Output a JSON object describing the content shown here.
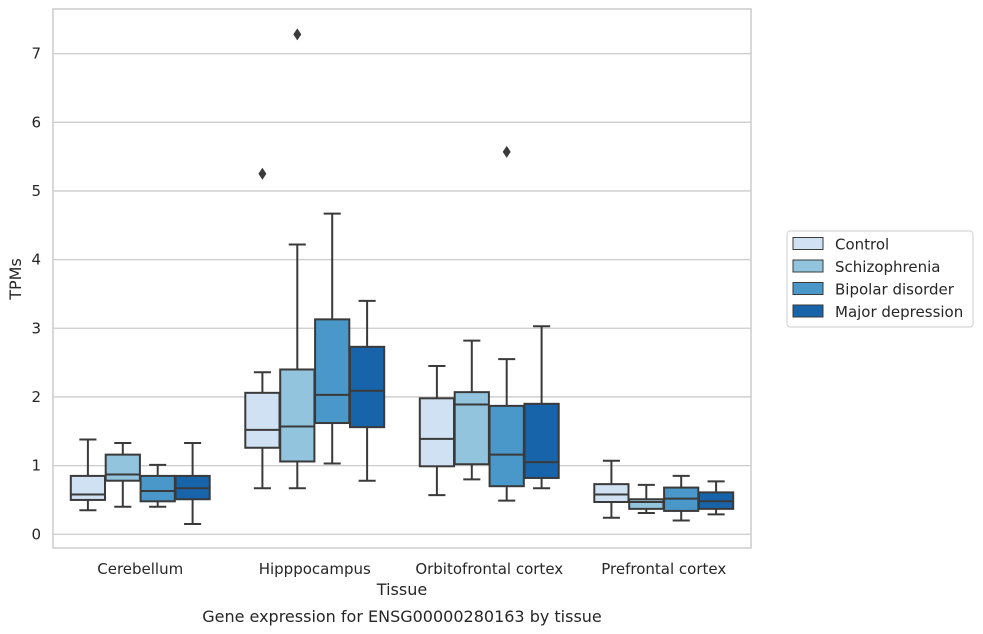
{
  "chart_data": {
    "type": "boxplot",
    "xlabel": "Tissue",
    "ylabel": "TPMs",
    "caption": "Gene expression for ENSG00000280163 by tissue",
    "ylim": [
      -0.2,
      7.65
    ],
    "yticks": [
      0,
      1,
      2,
      3,
      4,
      5,
      6,
      7
    ],
    "grid": true,
    "legend_position": "right",
    "categories": [
      "Cerebellum",
      "Hipppocampus",
      "Orbitofrontal cortex",
      "Prefrontal cortex"
    ],
    "series": [
      {
        "name": "Control",
        "color": "#cfe1f2",
        "boxes": [
          {
            "whisker_low": 0.35,
            "q1": 0.5,
            "median": 0.58,
            "q3": 0.85,
            "whisker_high": 1.38,
            "outliers": []
          },
          {
            "whisker_low": 0.67,
            "q1": 1.26,
            "median": 1.52,
            "q3": 2.06,
            "whisker_high": 2.36,
            "outliers": [
              5.25
            ]
          },
          {
            "whisker_low": 0.57,
            "q1": 0.99,
            "median": 1.39,
            "q3": 1.98,
            "whisker_high": 2.45,
            "outliers": []
          },
          {
            "whisker_low": 0.24,
            "q1": 0.47,
            "median": 0.58,
            "q3": 0.73,
            "whisker_high": 1.07,
            "outliers": []
          }
        ]
      },
      {
        "name": "Schizophrenia",
        "color": "#93c4de",
        "boxes": [
          {
            "whisker_low": 0.4,
            "q1": 0.78,
            "median": 0.87,
            "q3": 1.16,
            "whisker_high": 1.33,
            "outliers": []
          },
          {
            "whisker_low": 0.67,
            "q1": 1.06,
            "median": 1.57,
            "q3": 2.4,
            "whisker_high": 4.22,
            "outliers": [
              7.28
            ]
          },
          {
            "whisker_low": 0.8,
            "q1": 1.02,
            "median": 1.89,
            "q3": 2.07,
            "whisker_high": 2.82,
            "outliers": []
          },
          {
            "whisker_low": 0.31,
            "q1": 0.37,
            "median": 0.47,
            "q3": 0.51,
            "whisker_high": 0.72,
            "outliers": []
          }
        ]
      },
      {
        "name": "Bipolar disorder",
        "color": "#4a98c9",
        "boxes": [
          {
            "whisker_low": 0.4,
            "q1": 0.48,
            "median": 0.63,
            "q3": 0.85,
            "whisker_high": 1.01,
            "outliers": []
          },
          {
            "whisker_low": 1.03,
            "q1": 1.62,
            "median": 2.03,
            "q3": 3.13,
            "whisker_high": 4.67,
            "outliers": []
          },
          {
            "whisker_low": 0.49,
            "q1": 0.7,
            "median": 1.16,
            "q3": 1.87,
            "whisker_high": 2.55,
            "outliers": [
              5.57
            ]
          },
          {
            "whisker_low": 0.2,
            "q1": 0.34,
            "median": 0.52,
            "q3": 0.68,
            "whisker_high": 0.85,
            "outliers": []
          }
        ]
      },
      {
        "name": "Major depression",
        "color": "#1764ab",
        "boxes": [
          {
            "whisker_low": 0.15,
            "q1": 0.51,
            "median": 0.67,
            "q3": 0.85,
            "whisker_high": 1.33,
            "outliers": []
          },
          {
            "whisker_low": 0.78,
            "q1": 1.56,
            "median": 2.09,
            "q3": 2.73,
            "whisker_high": 3.4,
            "outliers": []
          },
          {
            "whisker_low": 0.67,
            "q1": 0.82,
            "median": 1.05,
            "q3": 1.9,
            "whisker_high": 3.03,
            "outliers": []
          },
          {
            "whisker_low": 0.29,
            "q1": 0.37,
            "median": 0.48,
            "q3": 0.61,
            "whisker_high": 0.77,
            "outliers": []
          }
        ]
      }
    ]
  }
}
